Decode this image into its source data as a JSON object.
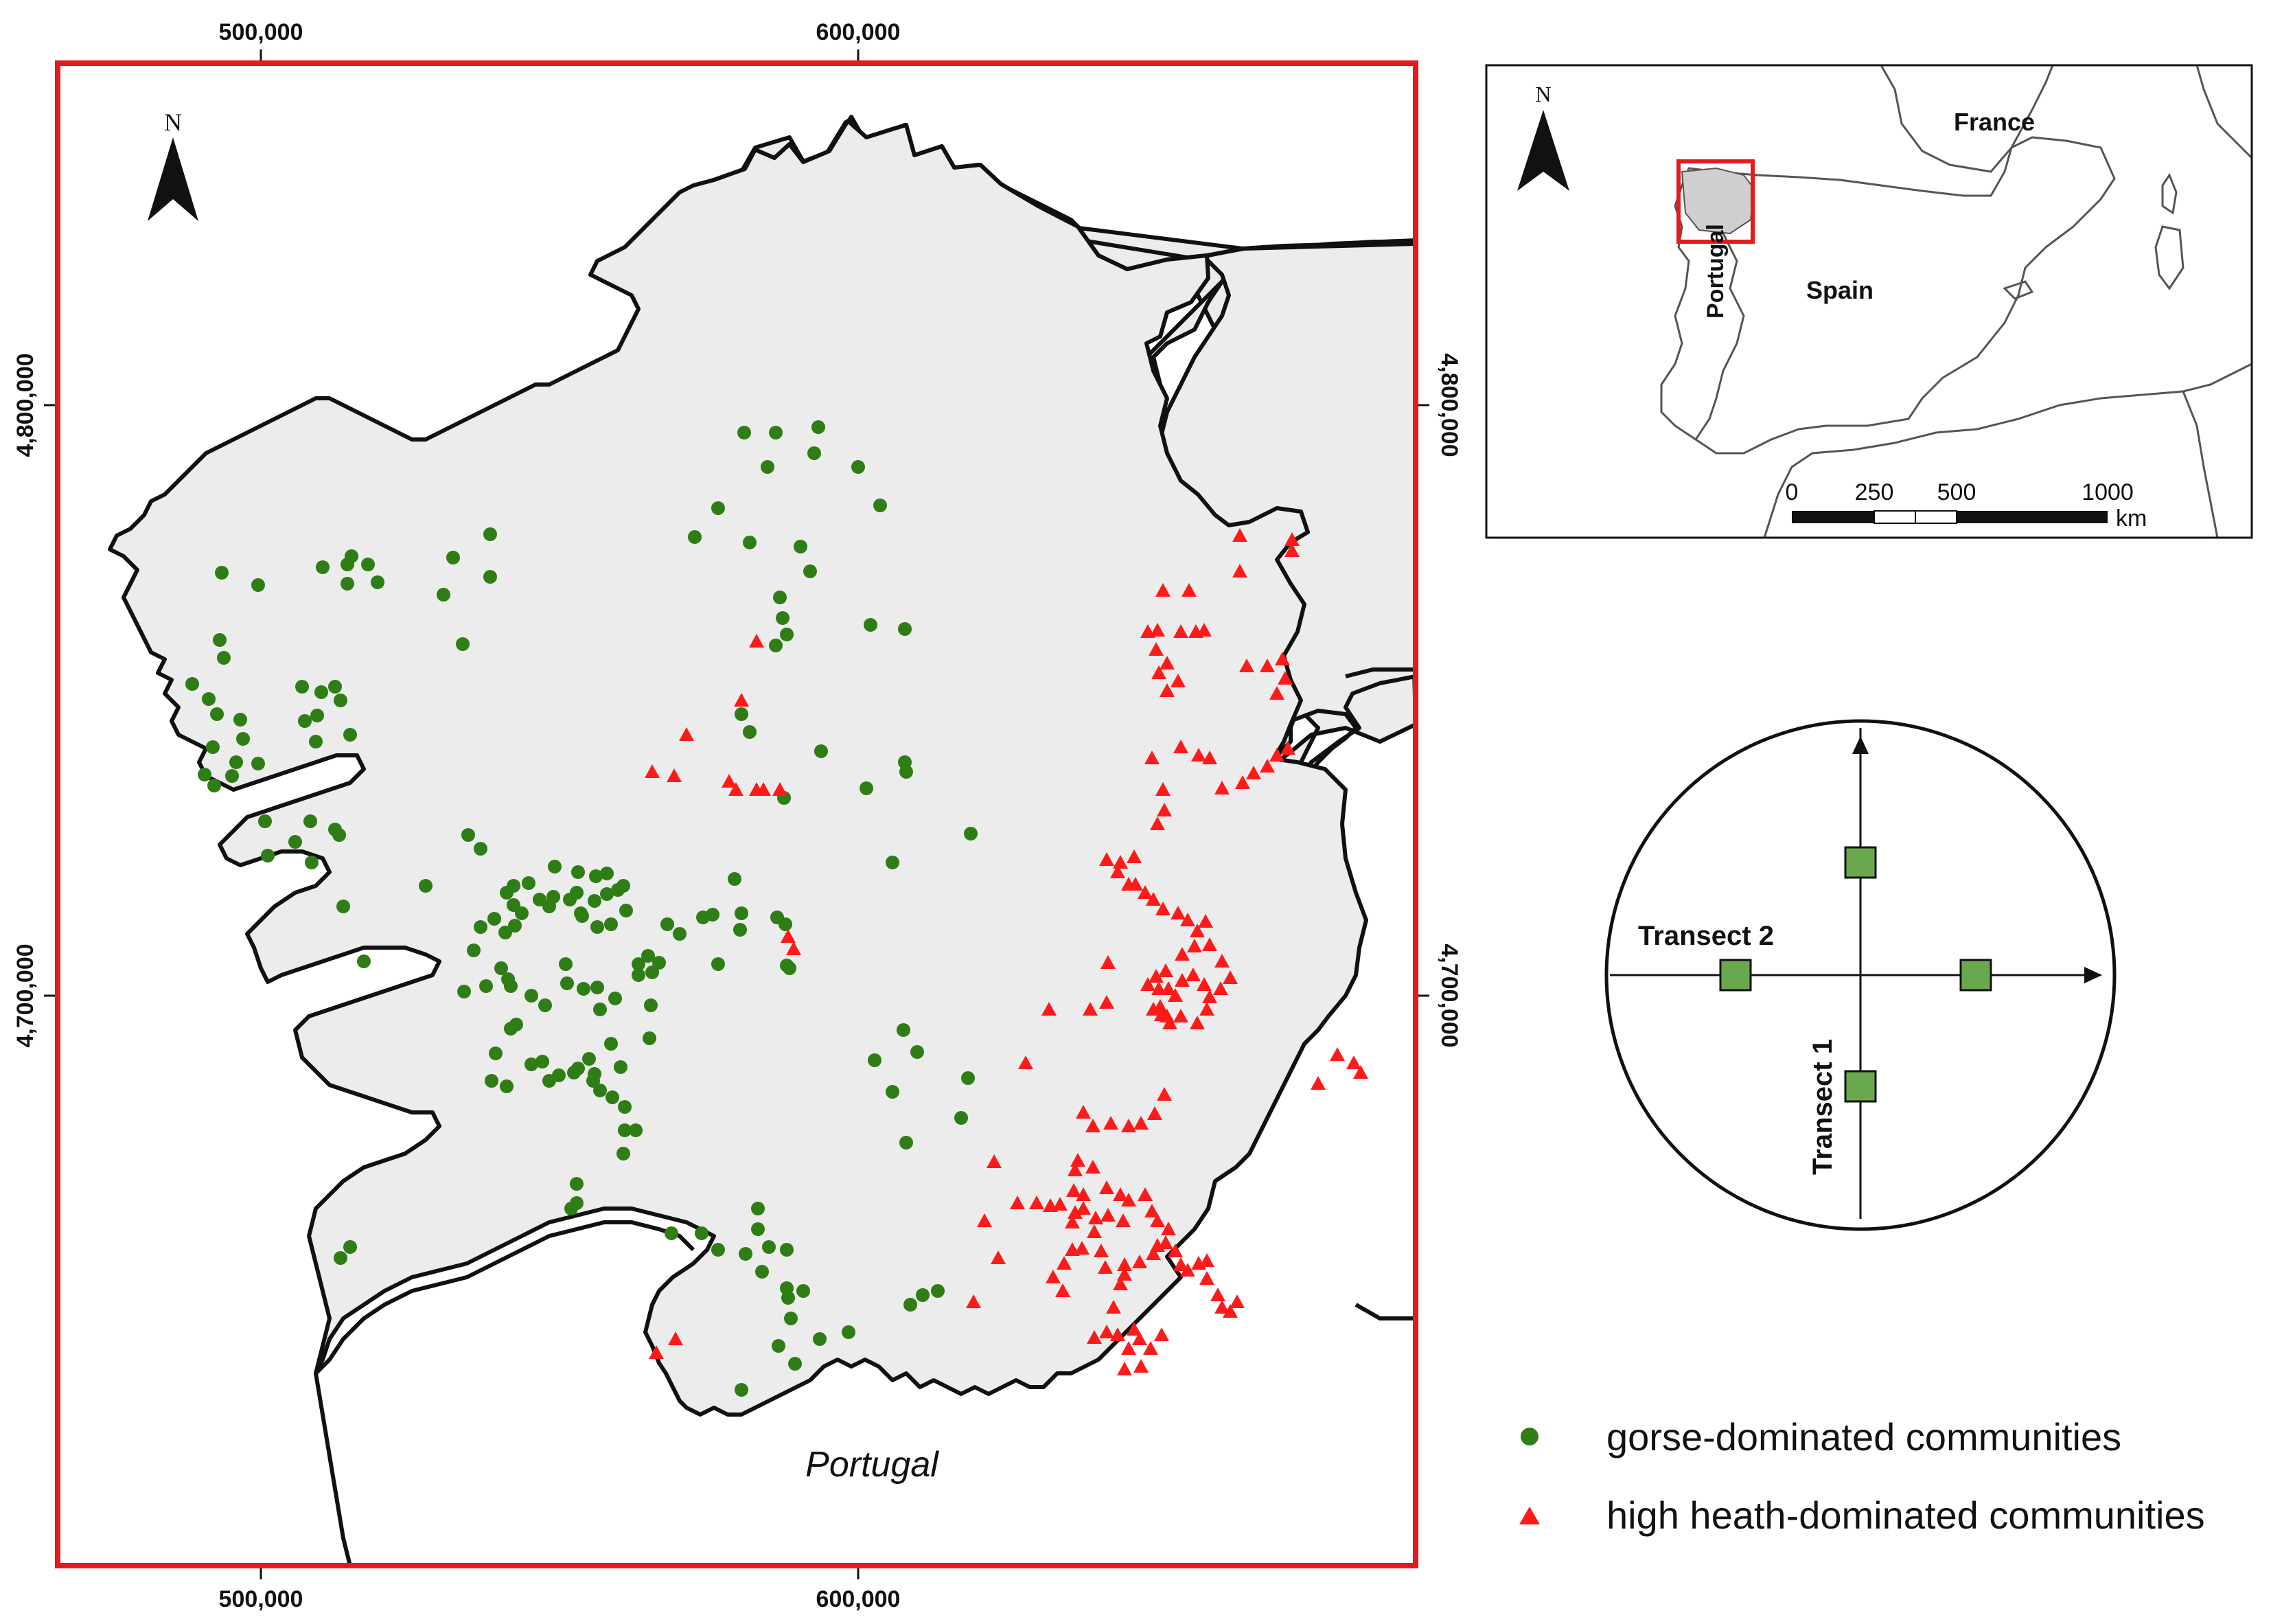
{
  "main_map": {
    "x_ticks": [
      "500,000",
      "600,000"
    ],
    "y_ticks": [
      "4,800,000",
      "4,700,000"
    ],
    "north_label": "N",
    "country_label": "Portugal",
    "frame_color": "#e41a1c",
    "land_color": "#ececec",
    "gorse_color": "#2e7d15",
    "heath_color": "#ff1a1a"
  },
  "inset_map": {
    "north_label": "N",
    "labels": {
      "france": "France",
      "spain": "Spain",
      "portugal": "Portugal"
    },
    "scale_labels": [
      "0",
      "250",
      "500",
      "1000"
    ],
    "scale_unit": "km"
  },
  "transect_diagram": {
    "transect_1": "Transect 1",
    "transect_2": "Transect 2",
    "plot_color": "#6aa84f"
  },
  "legend": {
    "gorse_label": "gorse-dominated communities",
    "heath_label": "high heath-dominated communities"
  }
}
